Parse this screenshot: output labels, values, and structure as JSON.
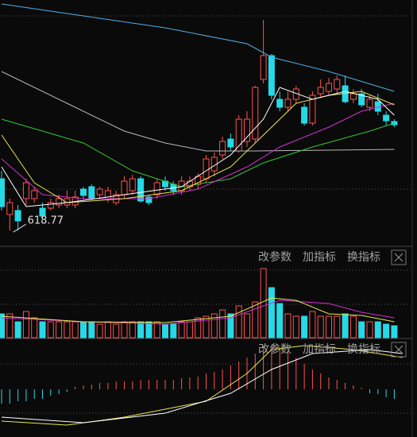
{
  "chart_data": [
    {
      "type": "candlestick",
      "ylim": [
        599,
        909
      ],
      "up_color": "#ff5050",
      "down_color": "#26d9e6",
      "open": [
        684,
        639,
        644,
        659,
        659,
        647,
        647,
        651,
        651,
        651,
        671,
        674,
        664,
        659,
        654,
        664,
        669,
        684,
        661,
        664,
        681,
        677,
        669,
        674,
        677,
        684,
        694,
        714,
        734,
        719,
        731,
        734,
        809,
        839,
        784,
        774,
        784,
        774,
        754,
        791,
        794,
        797,
        801,
        784,
        791,
        774,
        781,
        764,
        756
      ],
      "close": [
        649,
        654,
        631,
        679,
        669,
        637,
        654,
        659,
        659,
        661,
        663,
        659,
        671,
        669,
        664,
        681,
        684,
        656,
        654,
        679,
        674,
        669,
        681,
        681,
        687,
        709,
        711,
        731,
        724,
        759,
        759,
        799,
        839,
        789,
        774,
        784,
        797,
        754,
        789,
        799,
        804,
        809,
        781,
        791,
        777,
        784,
        769,
        757,
        752
      ],
      "high": [
        694,
        659,
        651,
        684,
        674,
        654,
        659,
        664,
        669,
        669,
        674,
        677,
        674,
        674,
        669,
        687,
        689,
        687,
        664,
        684,
        687,
        681,
        687,
        687,
        691,
        714,
        717,
        737,
        741,
        764,
        769,
        801,
        884,
        841,
        794,
        794,
        801,
        779,
        794,
        809,
        811,
        814,
        814,
        797,
        797,
        789,
        791,
        769,
        759
      ],
      "low": [
        644,
        619,
        618.77,
        651,
        654,
        634,
        644,
        647,
        647,
        647,
        659,
        657,
        659,
        654,
        651,
        659,
        664,
        654,
        651,
        659,
        669,
        664,
        664,
        669,
        671,
        679,
        687,
        709,
        719,
        717,
        724,
        729,
        804,
        784,
        769,
        769,
        779,
        751,
        751,
        787,
        789,
        791,
        779,
        779,
        774,
        769,
        764,
        751,
        749
      ],
      "lines": [
        {
          "color": "#4fb0e6",
          "x": [
            0,
            10,
            20,
            30,
            33,
            40,
            48
          ],
          "values": [
            904,
            889,
            874,
            854,
            837,
            819,
            794
          ]
        },
        {
          "color": "#b8b8b8",
          "x": [
            0,
            8,
            15,
            20,
            25,
            31,
            48
          ],
          "values": [
            819,
            779,
            744,
            729,
            719,
            719,
            721
          ]
        },
        {
          "color": "#34c734",
          "x": [
            0,
            10,
            16,
            22,
            28,
            32,
            38,
            45,
            48
          ],
          "values": [
            759,
            729,
            694,
            674,
            684,
            704,
            724,
            744,
            754
          ]
        },
        {
          "color": "#d030d0",
          "x": [
            0,
            5,
            10,
            18,
            24,
            30,
            34,
            40,
            44,
            48
          ],
          "values": [
            709,
            664,
            659,
            659,
            671,
            699,
            724,
            749,
            769,
            779
          ]
        },
        {
          "color": "#e8e84a",
          "x": [
            0,
            4,
            8,
            15,
            22,
            28,
            32,
            36,
            40,
            44,
            48
          ],
          "values": [
            739,
            679,
            654,
            659,
            669,
            699,
            739,
            779,
            789,
            794,
            777
          ]
        },
        {
          "color": "#ffffff",
          "x": [
            0,
            3,
            8,
            15,
            22,
            28,
            32,
            34,
            38,
            42,
            46,
            48
          ],
          "values": [
            699,
            649,
            654,
            664,
            674,
            714,
            759,
            799,
            784,
            794,
            784,
            764
          ]
        }
      ]
    },
    {
      "type": "volume",
      "ylim": [
        0,
        87
      ],
      "values": [
        30,
        30,
        20,
        33,
        25,
        20,
        20,
        20,
        20,
        20,
        20,
        20,
        17,
        20,
        17,
        20,
        20,
        20,
        20,
        20,
        17,
        17,
        20,
        20,
        25,
        27,
        30,
        35,
        30,
        40,
        30,
        45,
        87,
        63,
        43,
        30,
        27,
        27,
        33,
        27,
        27,
        27,
        30,
        27,
        20,
        20,
        20,
        17,
        15
      ],
      "lines": [
        {
          "color": "#d030d0",
          "x": [
            0,
            10,
            20,
            28,
            32,
            34,
            40,
            44,
            48
          ],
          "values": [
            25,
            20,
            17,
            25,
            40,
            47,
            43,
            32,
            25
          ]
        },
        {
          "color": "#e8e84a",
          "x": [
            0,
            10,
            20,
            28,
            33,
            36,
            40,
            44,
            48
          ],
          "values": [
            27,
            20,
            19,
            27,
            50,
            47,
            30,
            28,
            20
          ]
        }
      ]
    },
    {
      "type": "macd",
      "ylim": [
        -60,
        62
      ],
      "values": [
        -18,
        -18,
        -15,
        -15,
        -12,
        -12,
        -8,
        -6,
        -3,
        3,
        5,
        6,
        8,
        8,
        10,
        10,
        10,
        12,
        12,
        12,
        12,
        12,
        14,
        15,
        16,
        20,
        22,
        25,
        30,
        35,
        40,
        45,
        55,
        55,
        52,
        48,
        40,
        32,
        25,
        20,
        15,
        12,
        8,
        5,
        2,
        -5,
        -6,
        -10,
        -12
      ],
      "lines": [
        {
          "color": "#e8e84a",
          "x": [
            0,
            8,
            15,
            25,
            30,
            33,
            37,
            43,
            49
          ],
          "values": [
            -40,
            -45,
            -35,
            -15,
            20,
            50,
            55,
            50,
            40
          ]
        },
        {
          "color": "#ffffff",
          "x": [
            0,
            10,
            20,
            28,
            33,
            38,
            45,
            49
          ],
          "values": [
            -35,
            -42,
            -30,
            -5,
            25,
            45,
            50,
            45
          ]
        }
      ]
    }
  ],
  "toolbars": [
    {
      "buttons": [
        "改参数",
        "加指标",
        "换指标"
      ]
    },
    {
      "buttons": [
        "改参数",
        "加指标",
        "换指标"
      ]
    }
  ]
}
